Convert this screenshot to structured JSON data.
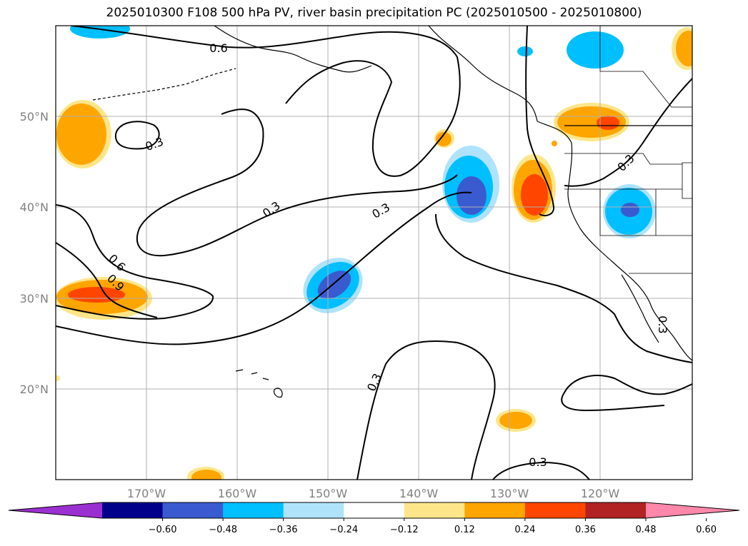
{
  "title": "2025010300 F108 500 hPa PV, river basin precipitation PC (2025010500 - 2025010800)",
  "map": {
    "lat_labels": [
      "50°N",
      "40°N",
      "30°N",
      "20°N"
    ],
    "lon_labels": [
      "170°W",
      "160°W",
      "150°W",
      "140°W",
      "130°W",
      "120°W"
    ],
    "contour_labels": [
      "0.6",
      "0.3",
      "0.3",
      "0.3",
      "0.6",
      "0.9",
      "0.3",
      "0.3",
      "0.3",
      "0.3"
    ]
  },
  "colorbar": {
    "tick_labels": [
      "−0.60",
      "−0.48",
      "−0.36",
      "−0.24",
      "−0.12",
      "0.12",
      "0.24",
      "0.36",
      "0.48",
      "0.60"
    ],
    "colors": [
      "#9b30d0",
      "#00008b",
      "#3a5bd0",
      "#00bfff",
      "#aee3fb",
      "#ffffff",
      "#fde68a",
      "#ffa500",
      "#ff4500",
      "#b22222",
      "#ff88aa"
    ]
  },
  "colors": {
    "neg_light": "#aee3fb",
    "neg_mid": "#00bfff",
    "neg_dark": "#3a5bd0",
    "pos_light": "#fde68a",
    "pos_mid": "#ffa500",
    "pos_dark": "#ff4500",
    "grid": "#b0b0b0",
    "label_gray": "#808080"
  }
}
